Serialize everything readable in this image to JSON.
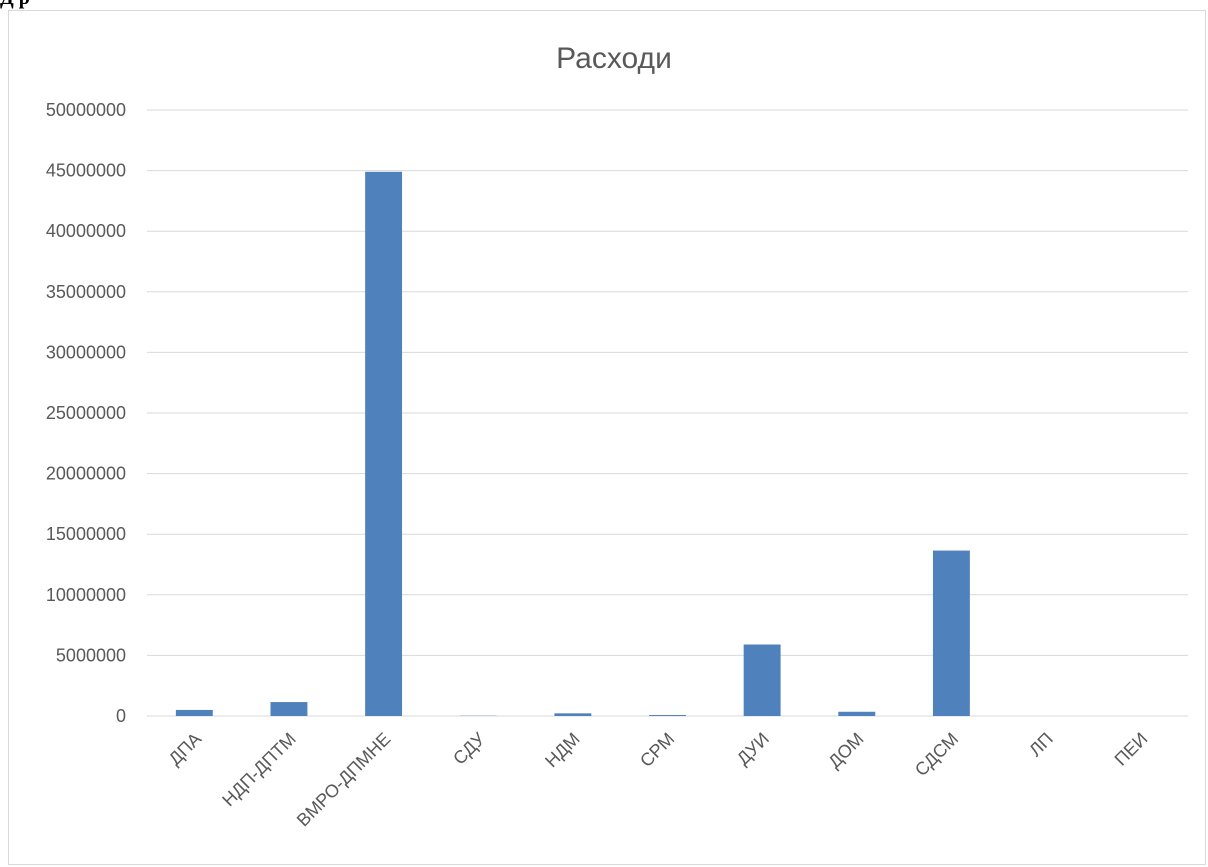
{
  "page": {
    "heading": "Д р"
  },
  "chart_data": {
    "type": "bar",
    "title": "Расходи",
    "categories": [
      "ДПА",
      "НДП-ДПТМ",
      "ВМРО-ДПМНЕ",
      "СДУ",
      "НДМ",
      "СРМ",
      "ДУИ",
      "ДОМ",
      "СДСМ",
      "ЛП",
      "ПЕИ"
    ],
    "values": [
      500000,
      1150000,
      44900000,
      20000,
      220000,
      80000,
      5900000,
      350000,
      13650000,
      0,
      0
    ],
    "ylim": [
      0,
      50000000
    ],
    "yticks": [
      "0",
      "5000000",
      "10000000",
      "15000000",
      "20000000",
      "25000000",
      "30000000",
      "35000000",
      "40000000",
      "45000000",
      "50000000"
    ],
    "xlabel": "",
    "ylabel": "",
    "grid": true,
    "legend": "none",
    "colors": {
      "bar": "#4f81bd",
      "grid": "#d9d9d9",
      "axis": "#d9d9d9",
      "text": "#595959"
    }
  }
}
